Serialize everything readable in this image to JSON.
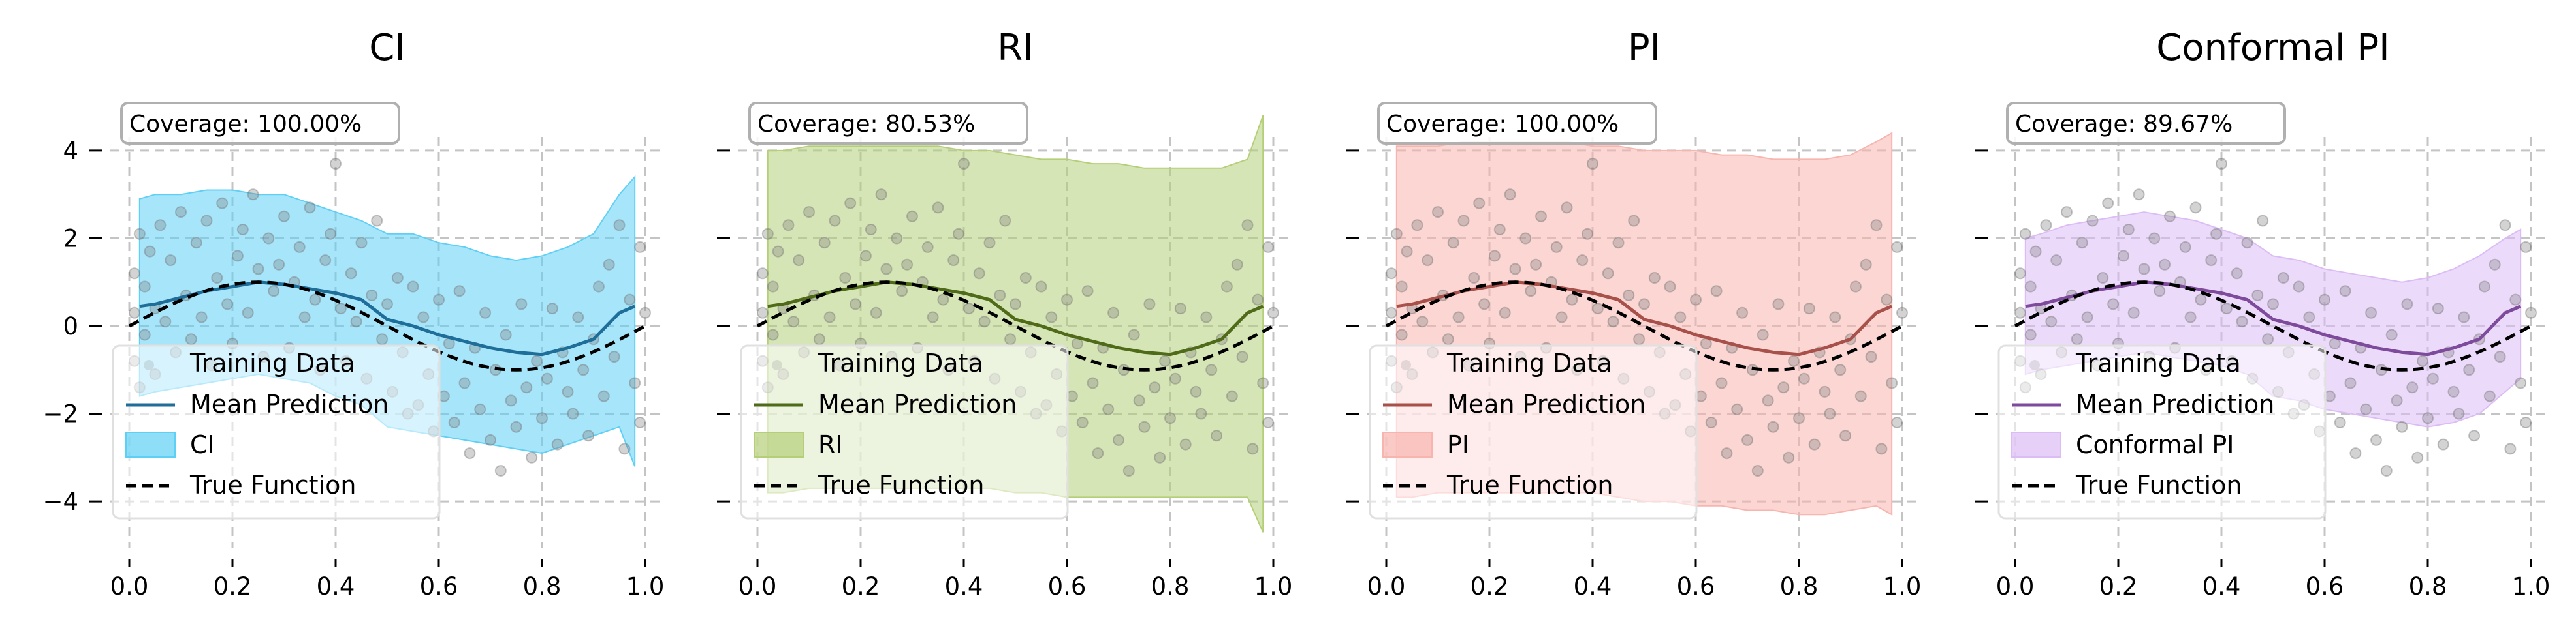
{
  "chart_data": [
    {
      "type": "scatter",
      "title": "CI",
      "coverage_label": "Coverage: 100.00%",
      "band_label": "CI",
      "band_color": "#5fd0f5",
      "mean_color": "#1f6e9a",
      "xlim": [
        0.0,
        1.0
      ],
      "ylim": [
        -5.5,
        5.5
      ],
      "xticks": [
        "0.0",
        "0.2",
        "0.4",
        "0.6",
        "0.8",
        "1.0"
      ],
      "yticks": [
        "4",
        "2",
        "0",
        "−2",
        "−4"
      ],
      "show_ytick_labels": true,
      "grid": true,
      "legend_position": "lower-left",
      "legend": [
        "Training Data",
        "Mean Prediction",
        "CI",
        "True Function"
      ],
      "x": [
        0.02,
        0.05,
        0.1,
        0.15,
        0.2,
        0.25,
        0.3,
        0.35,
        0.4,
        0.45,
        0.5,
        0.55,
        0.6,
        0.65,
        0.7,
        0.75,
        0.8,
        0.85,
        0.9,
        0.95,
        0.98
      ],
      "band_lower": [
        -1.6,
        -1.5,
        -1.4,
        -1.3,
        -1.2,
        -1.1,
        -1.2,
        -1.3,
        -1.6,
        -1.8,
        -2.3,
        -2.4,
        -2.5,
        -2.6,
        -2.7,
        -2.8,
        -2.9,
        -2.7,
        -2.5,
        -2.3,
        -3.2
      ],
      "band_upper": [
        2.9,
        3.0,
        3.0,
        3.1,
        3.1,
        3.0,
        3.0,
        2.8,
        2.6,
        2.4,
        2.1,
        2.1,
        1.9,
        1.8,
        1.6,
        1.5,
        1.6,
        1.8,
        2.1,
        3.0,
        3.4
      ],
      "mean": [
        0.45,
        0.5,
        0.65,
        0.8,
        0.9,
        1.0,
        0.95,
        0.85,
        0.75,
        0.6,
        0.15,
        0.0,
        -0.2,
        -0.35,
        -0.5,
        -0.6,
        -0.65,
        -0.5,
        -0.3,
        0.3,
        0.45
      ]
    },
    {
      "type": "scatter",
      "title": "RI",
      "coverage_label": "Coverage: 80.53%",
      "band_label": "RI",
      "band_color": "#b5cf79",
      "mean_color": "#4f6b1a",
      "xlim": [
        0.0,
        1.0
      ],
      "ylim": [
        -5.5,
        5.5
      ],
      "xticks": [
        "0.0",
        "0.2",
        "0.4",
        "0.6",
        "0.8",
        "1.0"
      ],
      "yticks": [],
      "show_ytick_labels": false,
      "grid": true,
      "legend_position": "lower-left",
      "legend": [
        "Training Data",
        "Mean Prediction",
        "RI",
        "True Function"
      ],
      "x": [
        0.02,
        0.05,
        0.1,
        0.15,
        0.2,
        0.25,
        0.3,
        0.35,
        0.4,
        0.45,
        0.5,
        0.55,
        0.6,
        0.65,
        0.7,
        0.75,
        0.8,
        0.85,
        0.9,
        0.95,
        0.98
      ],
      "band_lower": [
        -3.8,
        -3.8,
        -3.7,
        -3.7,
        -3.7,
        -3.7,
        -3.7,
        -3.7,
        -3.7,
        -3.7,
        -3.8,
        -3.8,
        -3.9,
        -3.9,
        -3.9,
        -3.9,
        -3.9,
        -3.9,
        -3.9,
        -3.9,
        -4.7
      ],
      "band_upper": [
        4.0,
        4.0,
        4.1,
        4.1,
        4.1,
        4.1,
        4.1,
        4.1,
        4.0,
        4.0,
        3.9,
        3.8,
        3.8,
        3.7,
        3.7,
        3.6,
        3.6,
        3.6,
        3.6,
        3.8,
        4.8
      ],
      "mean": [
        0.45,
        0.5,
        0.65,
        0.8,
        0.9,
        1.0,
        0.95,
        0.85,
        0.75,
        0.6,
        0.15,
        0.0,
        -0.2,
        -0.35,
        -0.5,
        -0.6,
        -0.65,
        -0.5,
        -0.3,
        0.3,
        0.45
      ]
    },
    {
      "type": "scatter",
      "title": "PI",
      "coverage_label": "Coverage: 100.00%",
      "band_label": "PI",
      "band_color": "#f8b4ae",
      "mean_color": "#a8504a",
      "xlim": [
        0.0,
        1.0
      ],
      "ylim": [
        -5.5,
        5.5
      ],
      "xticks": [
        "0.0",
        "0.2",
        "0.4",
        "0.6",
        "0.8",
        "1.0"
      ],
      "yticks": [],
      "show_ytick_labels": false,
      "grid": true,
      "legend_position": "lower-left",
      "legend": [
        "Training Data",
        "Mean Prediction",
        "PI",
        "True Function"
      ],
      "x": [
        0.02,
        0.05,
        0.1,
        0.15,
        0.2,
        0.25,
        0.3,
        0.35,
        0.4,
        0.45,
        0.5,
        0.55,
        0.6,
        0.65,
        0.7,
        0.75,
        0.8,
        0.85,
        0.9,
        0.95,
        0.98
      ],
      "band_lower": [
        -3.9,
        -3.9,
        -3.8,
        -3.8,
        -3.8,
        -3.8,
        -3.8,
        -3.8,
        -3.8,
        -3.9,
        -4.0,
        -4.0,
        -4.1,
        -4.1,
        -4.2,
        -4.2,
        -4.3,
        -4.3,
        -4.2,
        -4.1,
        -4.3
      ],
      "band_upper": [
        4.1,
        4.1,
        4.1,
        4.2,
        4.2,
        4.2,
        4.2,
        4.2,
        4.1,
        4.1,
        4.0,
        4.0,
        4.0,
        3.9,
        3.9,
        3.8,
        3.8,
        3.8,
        3.9,
        4.2,
        4.4
      ],
      "mean": [
        0.45,
        0.5,
        0.65,
        0.8,
        0.9,
        1.0,
        0.95,
        0.85,
        0.75,
        0.6,
        0.15,
        0.0,
        -0.2,
        -0.35,
        -0.5,
        -0.6,
        -0.65,
        -0.5,
        -0.3,
        0.3,
        0.45
      ]
    },
    {
      "type": "scatter",
      "title": "Conformal PI",
      "coverage_label": "Coverage: 89.67%",
      "band_label": "Conformal PI",
      "band_color": "#dcbcf5",
      "mean_color": "#7e4a9c",
      "xlim": [
        0.0,
        1.0
      ],
      "ylim": [
        -5.5,
        5.5
      ],
      "xticks": [
        "0.0",
        "0.2",
        "0.4",
        "0.6",
        "0.8",
        "1.0"
      ],
      "yticks": [],
      "show_ytick_labels": false,
      "grid": true,
      "legend_position": "lower-left",
      "legend": [
        "Training Data",
        "Mean Prediction",
        "Conformal PI",
        "True Function"
      ],
      "x": [
        0.02,
        0.05,
        0.1,
        0.15,
        0.2,
        0.25,
        0.3,
        0.35,
        0.4,
        0.45,
        0.5,
        0.55,
        0.6,
        0.65,
        0.7,
        0.75,
        0.8,
        0.85,
        0.9,
        0.95,
        0.98
      ],
      "band_lower": [
        -1.1,
        -1.0,
        -0.9,
        -0.8,
        -0.7,
        -0.6,
        -0.7,
        -0.8,
        -0.9,
        -1.1,
        -1.6,
        -1.7,
        -1.9,
        -2.0,
        -2.1,
        -2.2,
        -2.3,
        -2.2,
        -2.0,
        -1.5,
        -1.2
      ],
      "band_upper": [
        2.0,
        2.1,
        2.3,
        2.4,
        2.5,
        2.6,
        2.5,
        2.4,
        2.2,
        2.0,
        1.6,
        1.5,
        1.3,
        1.2,
        1.1,
        1.0,
        1.1,
        1.3,
        1.6,
        2.0,
        2.2
      ],
      "mean": [
        0.45,
        0.5,
        0.65,
        0.8,
        0.9,
        1.0,
        0.95,
        0.85,
        0.75,
        0.6,
        0.15,
        0.0,
        -0.2,
        -0.35,
        -0.5,
        -0.6,
        -0.65,
        -0.5,
        -0.3,
        0.3,
        0.45
      ]
    }
  ],
  "training_points": {
    "note_color": "#808080",
    "x": [
      0.01,
      0.01,
      0.01,
      0.02,
      0.02,
      0.03,
      0.03,
      0.04,
      0.05,
      0.05,
      0.06,
      0.07,
      0.08,
      0.09,
      0.1,
      0.11,
      0.12,
      0.13,
      0.14,
      0.15,
      0.16,
      0.17,
      0.18,
      0.19,
      0.2,
      0.21,
      0.22,
      0.23,
      0.24,
      0.25,
      0.26,
      0.27,
      0.28,
      0.29,
      0.3,
      0.31,
      0.32,
      0.33,
      0.34,
      0.35,
      0.36,
      0.37,
      0.38,
      0.39,
      0.4,
      0.41,
      0.42,
      0.43,
      0.44,
      0.45,
      0.46,
      0.47,
      0.48,
      0.49,
      0.5,
      0.51,
      0.52,
      0.53,
      0.54,
      0.55,
      0.56,
      0.57,
      0.58,
      0.59,
      0.6,
      0.61,
      0.62,
      0.63,
      0.64,
      0.65,
      0.66,
      0.67,
      0.68,
      0.69,
      0.7,
      0.71,
      0.72,
      0.73,
      0.74,
      0.75,
      0.76,
      0.77,
      0.78,
      0.79,
      0.8,
      0.81,
      0.82,
      0.83,
      0.84,
      0.85,
      0.86,
      0.87,
      0.88,
      0.89,
      0.9,
      0.91,
      0.92,
      0.93,
      0.94,
      0.95,
      0.96,
      0.97,
      0.98,
      0.99,
      0.99,
      1.0
    ],
    "y": [
      1.2,
      -0.8,
      0.3,
      2.1,
      -1.4,
      0.9,
      -0.2,
      1.7,
      0.4,
      -1.1,
      2.3,
      0.1,
      1.5,
      -0.6,
      2.6,
      0.7,
      -0.3,
      1.9,
      0.2,
      2.4,
      -0.9,
      1.1,
      2.8,
      0.5,
      -0.4,
      1.6,
      2.2,
      0.3,
      3.0,
      1.3,
      -0.7,
      2.0,
      0.8,
      1.4,
      2.5,
      -0.5,
      1.0,
      1.8,
      0.2,
      2.7,
      0.6,
      -1.0,
      1.5,
      2.1,
      3.7,
      0.4,
      -0.8,
      1.2,
      0.1,
      1.9,
      -1.2,
      0.7,
      2.4,
      -0.3,
      0.5,
      -1.5,
      1.1,
      -0.6,
      -2.0,
      0.9,
      -1.8,
      0.2,
      -1.1,
      -2.4,
      0.6,
      -1.6,
      -0.4,
      -2.2,
      0.8,
      -1.3,
      -2.9,
      -0.5,
      -1.9,
      0.3,
      -2.6,
      -1.0,
      -3.3,
      -0.2,
      -1.7,
      -2.3,
      0.5,
      -1.4,
      -3.0,
      -0.8,
      -2.1,
      -1.2,
      0.4,
      -2.7,
      -0.6,
      -1.5,
      -2.0,
      0.2,
      -1.0,
      -2.5,
      -0.3,
      0.9,
      -1.6,
      1.4,
      -0.7,
      2.3,
      -2.8,
      0.6,
      -1.3,
      1.8,
      -2.2,
      0.3
    ]
  }
}
